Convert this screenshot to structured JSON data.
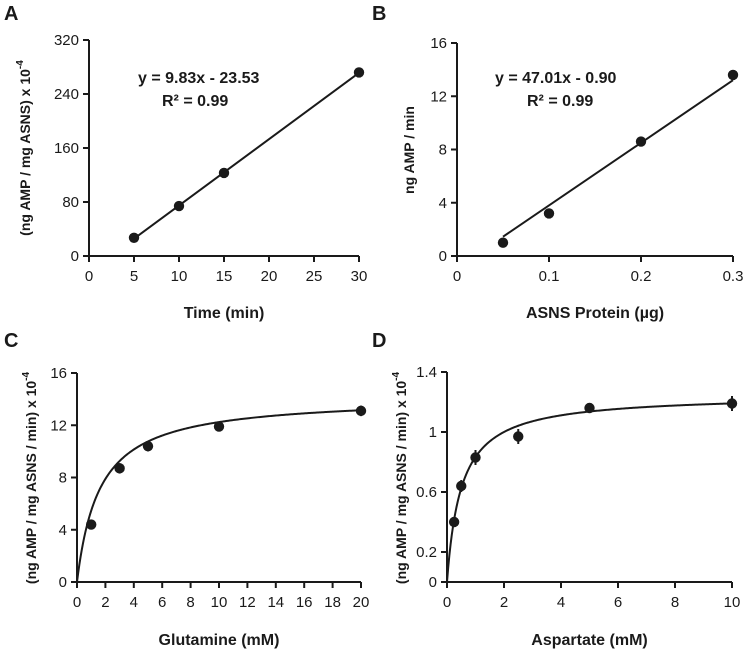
{
  "figure": {
    "panel_letters": [
      "A",
      "B",
      "C",
      "D"
    ]
  },
  "chart_data": [
    {
      "panel": "A",
      "type": "scatter",
      "title": "",
      "xlabel": "Time (min)",
      "ylabel_main": "(ng AMP / mg ASNS) x 10",
      "ylabel_exp": "-4",
      "xlim": [
        0,
        30
      ],
      "ylim": [
        0,
        320
      ],
      "xticks": [
        0,
        5,
        10,
        15,
        20,
        25,
        30
      ],
      "yticks": [
        0,
        80,
        160,
        240,
        320
      ],
      "points": [
        {
          "x": 5,
          "y": 27,
          "err": 5
        },
        {
          "x": 10,
          "y": 74,
          "err": 3
        },
        {
          "x": 15,
          "y": 123,
          "err": 3
        },
        {
          "x": 30,
          "y": 272,
          "err": 3
        }
      ],
      "fit": {
        "kind": "linear",
        "slope": 9.83,
        "intercept": -23.53,
        "x_range": [
          5,
          30
        ]
      },
      "equation": "y = 9.83x - 23.53",
      "r2": "R² = 0.99"
    },
    {
      "panel": "B",
      "type": "scatter",
      "title": "",
      "xlabel": "ASNS Protein (µg)",
      "ylabel_main": "ng AMP / min",
      "ylabel_exp": "",
      "xlim": [
        0,
        0.3
      ],
      "ylim": [
        0,
        16
      ],
      "xticks": [
        0,
        0.1,
        0.2,
        0.3
      ],
      "yticks": [
        0,
        4,
        8,
        12,
        16
      ],
      "points": [
        {
          "x": 0.05,
          "y": 1.0,
          "err": 0
        },
        {
          "x": 0.1,
          "y": 3.2,
          "err": 0
        },
        {
          "x": 0.2,
          "y": 8.6,
          "err": 0
        },
        {
          "x": 0.3,
          "y": 13.6,
          "err": 0
        }
      ],
      "fit": {
        "kind": "linear",
        "slope": 47.01,
        "intercept": -0.9,
        "x_range": [
          0.05,
          0.3
        ]
      },
      "equation": "y = 47.01x - 0.90",
      "r2": "R² = 0.99"
    },
    {
      "panel": "C",
      "type": "scatter",
      "title": "",
      "xlabel": "Glutamine (mM)",
      "ylabel_main": "(ng AMP / mg ASNS / min) x 10",
      "ylabel_exp": "-4",
      "xlim": [
        0,
        20
      ],
      "ylim": [
        0,
        16
      ],
      "xticks": [
        0,
        2,
        4,
        6,
        8,
        10,
        12,
        14,
        16,
        18,
        20
      ],
      "yticks": [
        0,
        4,
        8,
        12,
        16
      ],
      "points": [
        {
          "x": 1,
          "y": 4.4,
          "err": 0.2
        },
        {
          "x": 3,
          "y": 8.7,
          "err": 0.4
        },
        {
          "x": 5,
          "y": 10.4,
          "err": 0.4
        },
        {
          "x": 10,
          "y": 11.9,
          "err": 0.3
        },
        {
          "x": 20,
          "y": 13.1,
          "err": 0.4
        }
      ],
      "fit": {
        "kind": "michaelis-menten",
        "vmax": 14.2,
        "km": 1.6,
        "x_range": [
          0,
          20
        ]
      }
    },
    {
      "panel": "D",
      "type": "scatter",
      "title": "",
      "xlabel": "Aspartate (mM)",
      "ylabel_main": "(ng AMP / mg ASNS / min) x 10",
      "ylabel_exp": "-4",
      "xlim": [
        0,
        10
      ],
      "ylim": [
        0,
        1.4
      ],
      "xticks": [
        0,
        2,
        4,
        6,
        8,
        10
      ],
      "yticks": [
        0,
        0.2,
        0.6,
        1,
        1.4
      ],
      "ytick_labels": [
        "0",
        "0.2",
        "0.6",
        "1",
        "1.4"
      ],
      "points": [
        {
          "x": 0.25,
          "y": 0.4,
          "err": 0.02
        },
        {
          "x": 0.5,
          "y": 0.64,
          "err": 0.04
        },
        {
          "x": 1.0,
          "y": 0.83,
          "err": 0.05
        },
        {
          "x": 2.5,
          "y": 0.97,
          "err": 0.05
        },
        {
          "x": 5.0,
          "y": 1.16,
          "err": 0.02
        },
        {
          "x": 10.0,
          "y": 1.19,
          "err": 0.05
        }
      ],
      "fit": {
        "kind": "michaelis-menten",
        "vmax": 1.25,
        "km": 0.5,
        "x_range": [
          0,
          10
        ]
      }
    }
  ]
}
